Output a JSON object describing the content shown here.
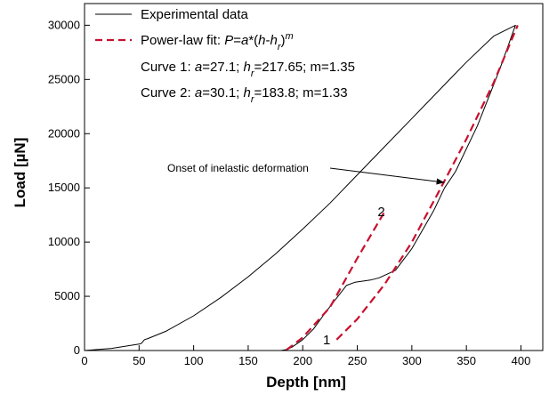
{
  "chart_data": {
    "type": "line",
    "xlabel": "Depth [nm]",
    "ylabel": "Load [µN]",
    "xlim": [
      0,
      420
    ],
    "ylim": [
      0,
      32000
    ],
    "x_ticks": [
      0,
      50,
      100,
      150,
      200,
      250,
      300,
      350,
      400
    ],
    "y_ticks": [
      0,
      5000,
      10000,
      15000,
      20000,
      25000,
      30000
    ],
    "grid": false,
    "legend_position": "top-left",
    "legend": [
      {
        "label": "Experimental data",
        "style": "solid",
        "color": "#000000"
      },
      {
        "label": "Power-law fit: P=a*(h-hr)m",
        "style": "dashed",
        "color": "#c8102e"
      }
    ],
    "fit_parameters": [
      {
        "text": "Curve 1: a=27.1; hr=217.65; m=1.35"
      },
      {
        "text": "Curve 2: a=30.1; hr=183.8; m=1.33"
      }
    ],
    "annotations": [
      {
        "text": "Onset of inelastic deformation",
        "points_to": [
          330,
          15500
        ]
      }
    ],
    "curve_labels": [
      {
        "text": "1",
        "at": [
          222,
          1000
        ]
      },
      {
        "text": "2",
        "at": [
          272,
          12800
        ]
      }
    ],
    "series": [
      {
        "name": "Experimental data",
        "style": "solid",
        "color": "#000000",
        "x": [
          0,
          25,
          50,
          52,
          55,
          58,
          75,
          100,
          125,
          150,
          175,
          200,
          225,
          250,
          275,
          300,
          325,
          350,
          375,
          395,
          395,
          380,
          360,
          340,
          330,
          320,
          300,
          285,
          270,
          262,
          255,
          248,
          240,
          230,
          220,
          210,
          200,
          190,
          185,
          180
        ],
        "y": [
          0,
          200,
          600,
          650,
          1000,
          1100,
          1800,
          3200,
          4900,
          6800,
          8900,
          11200,
          13600,
          16200,
          18800,
          21400,
          24000,
          26600,
          29000,
          30000,
          30000,
          25800,
          20700,
          16500,
          15000,
          12900,
          9400,
          7400,
          6700,
          6500,
          6400,
          6300,
          6000,
          4700,
          3400,
          2000,
          1000,
          300,
          80,
          0
        ]
      },
      {
        "name": "Curve 1",
        "style": "dashed",
        "color": "#c8102e",
        "x": [
          231,
          250,
          275,
          300,
          325,
          350,
          375,
          397
        ],
        "y": [
          1000,
          2900,
          6100,
          10000,
          14700,
          19500,
          24700,
          30000
        ]
      },
      {
        "name": "Curve 2",
        "style": "dashed",
        "color": "#c8102e",
        "x": [
          185,
          200,
          225,
          250,
          275
        ],
        "y": [
          50,
          1200,
          4000,
          8500,
          12800
        ]
      }
    ]
  }
}
